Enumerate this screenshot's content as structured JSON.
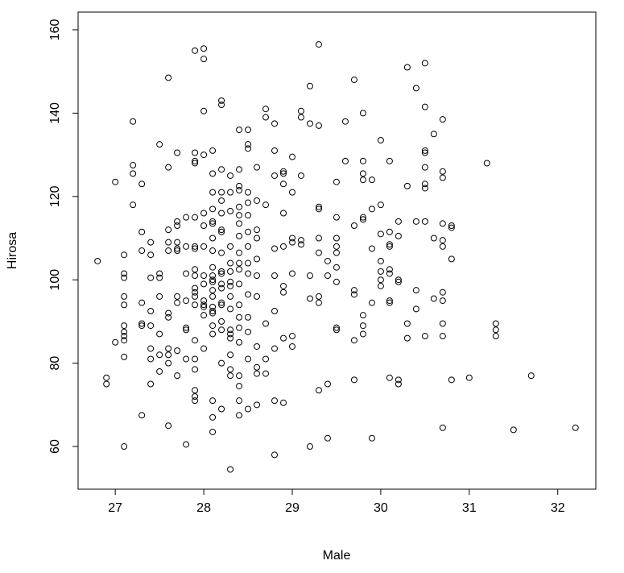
{
  "chart_data": {
    "type": "scatter",
    "x_label": "Male",
    "y_label": "Hirosa",
    "color": "#000000",
    "xlim": [
      26.58,
      32.43
    ],
    "ylim": [
      49.76,
      164.25
    ],
    "xticks": [
      27,
      28,
      29,
      30,
      31,
      32
    ],
    "yticks": [
      60,
      80,
      100,
      120,
      140,
      160
    ],
    "x": [
      26.8,
      26.9,
      26.9,
      27,
      27,
      27.1,
      27.1,
      27.1,
      27.1,
      27.1,
      27.1,
      27.1,
      27.1,
      27.1,
      27.1,
      27.1,
      27.2,
      27.2,
      27.2,
      27.2,
      27.3,
      27.3,
      27.3,
      27.3,
      27.3,
      27.3,
      27.3,
      27.4,
      27.4,
      27.4,
      27.4,
      27.4,
      27.4,
      27.4,
      27.4,
      27.5,
      27.5,
      27.5,
      27.5,
      27.5,
      27.5,
      27.5,
      27.6,
      27.6,
      27.6,
      27.6,
      27.6,
      27.6,
      27.6,
      27.6,
      27.6,
      27.6,
      27.6,
      27.7,
      27.7,
      27.7,
      27.7,
      27.7,
      27.7,
      27.7,
      27.7,
      27.7,
      27.7,
      27.8,
      27.8,
      27.8,
      27.8,
      27.8,
      27.8,
      27.8,
      27.8,
      27.9,
      27.9,
      27.9,
      27.9,
      27.9,
      27.9,
      27.9,
      27.9,
      27.9,
      27.9,
      27.9,
      27.9,
      27.9,
      27.9,
      27.9,
      27.9,
      27.9,
      27.9,
      27.9,
      28,
      28,
      28,
      28,
      28,
      28,
      28,
      28,
      28,
      28,
      28,
      28,
      28,
      28,
      28.1,
      28.1,
      28.1,
      28.1,
      28.1,
      28.1,
      28.1,
      28.1,
      28.1,
      28.1,
      28.1,
      28.1,
      28.1,
      28.1,
      28.1,
      28.1,
      28.1,
      28.1,
      28.1,
      28.1,
      28.1,
      28.1,
      28.2,
      28.2,
      28.2,
      28.2,
      28.2,
      28.2,
      28.2,
      28.2,
      28.2,
      28.2,
      28.2,
      28.2,
      28.2,
      28.2,
      28.2,
      28.2,
      28.2,
      28.2,
      28.2,
      28.3,
      28.3,
      28.3,
      28.3,
      28.3,
      28.3,
      28.3,
      28.3,
      28.3,
      28.3,
      28.3,
      28.3,
      28.3,
      28.3,
      28.3,
      28.3,
      28.3,
      28.4,
      28.4,
      28.4,
      28.4,
      28.4,
      28.4,
      28.4,
      28.4,
      28.4,
      28.4,
      28.4,
      28.4,
      28.4,
      28.4,
      28.4,
      28.4,
      28.4,
      28.4,
      28.4,
      28.4,
      28.5,
      28.5,
      28.5,
      28.5,
      28.5,
      28.5,
      28.5,
      28.5,
      28.5,
      28.5,
      28.5,
      28.5,
      28.5,
      28.5,
      28.5,
      28.6,
      28.6,
      28.6,
      28.6,
      28.6,
      28.6,
      28.6,
      28.6,
      28.6,
      28.6,
      28.6,
      28.7,
      28.7,
      28.7,
      28.7,
      28.7,
      28.7,
      28.8,
      28.8,
      28.8,
      28.8,
      28.8,
      28.8,
      28.8,
      28.8,
      28.8,
      28.9,
      28.9,
      28.9,
      28.9,
      28.9,
      28.9,
      28.9,
      28.9,
      28.9,
      29,
      29,
      29,
      29,
      29,
      29,
      29,
      29.1,
      29.1,
      29.1,
      29.1,
      29.1,
      29.2,
      29.2,
      29.2,
      29.2,
      29.2,
      29.3,
      29.3,
      29.3,
      29.3,
      29.3,
      29.3,
      29.3,
      29.3,
      29.3,
      29.4,
      29.4,
      29.4,
      29.4,
      29.5,
      29.5,
      29.5,
      29.5,
      29.5,
      29.5,
      29.5,
      29.5,
      29.5,
      29.6,
      29.6,
      29.7,
      29.7,
      29.7,
      29.7,
      29.7,
      29.7,
      29.8,
      29.8,
      29.8,
      29.8,
      29.8,
      29.8,
      29.8,
      29.8,
      29.8,
      29.9,
      29.9,
      29.9,
      29.9,
      29.9,
      30,
      30,
      30,
      30,
      30,
      30,
      30,
      30.1,
      30.1,
      30.1,
      30.1,
      30.1,
      30.1,
      30.1,
      30.1,
      30.1,
      30.2,
      30.2,
      30.2,
      30.2,
      30.2,
      30.2,
      30.3,
      30.3,
      30.3,
      30.3,
      30.4,
      30.4,
      30.4,
      30.4,
      30.5,
      30.5,
      30.5,
      30.5,
      30.5,
      30.5,
      30.5,
      30.5,
      30.5,
      30.6,
      30.6,
      30.6,
      30.7,
      30.7,
      30.7,
      30.7,
      30.7,
      30.7,
      30.7,
      30.7,
      30.7,
      30.7,
      30.7,
      30.8,
      30.8,
      30.8,
      30.8,
      31,
      31.2,
      31.3,
      31.3,
      31.3,
      31.5,
      31.7,
      32.2
    ],
    "values": [
      104.5,
      76.5,
      75,
      123.5,
      85,
      106,
      101.5,
      100.5,
      96,
      94,
      89,
      87.5,
      86.5,
      85.5,
      81.5,
      60,
      138,
      127.5,
      125.5,
      118,
      123,
      111.5,
      107,
      94.5,
      89.5,
      89,
      67.5,
      109,
      106,
      100.5,
      92.5,
      89,
      83.5,
      81,
      75,
      132.5,
      101.5,
      100.5,
      96,
      87,
      82,
      78,
      148.5,
      127,
      112,
      109,
      107,
      92,
      91,
      83.5,
      82,
      80,
      65,
      130.5,
      114,
      113,
      109,
      107.5,
      107,
      96,
      94.5,
      83,
      77,
      115,
      108,
      101.5,
      95,
      88.5,
      88,
      81,
      60.5,
      155,
      130.5,
      128.5,
      128,
      115,
      108,
      107.5,
      102.5,
      101,
      98,
      97,
      96,
      94,
      85.5,
      81,
      78.5,
      73.5,
      72,
      71,
      155.5,
      153,
      140.5,
      130,
      116,
      113,
      108,
      101,
      99,
      95,
      94,
      93.5,
      91.5,
      83.5,
      131,
      125.5,
      121,
      117,
      114,
      113.5,
      110,
      107,
      103,
      101,
      100,
      99.5,
      97.5,
      96,
      93.5,
      92.5,
      92,
      89,
      87,
      71,
      67,
      63.5,
      143,
      142,
      126.5,
      121,
      119,
      116,
      112,
      111.5,
      106.5,
      102,
      101.5,
      99,
      98,
      94.5,
      94,
      90,
      88,
      80,
      69,
      125,
      121,
      116.5,
      108,
      104,
      102,
      99.5,
      98.5,
      96,
      93,
      88,
      87,
      86,
      82,
      78.5,
      77,
      54.5,
      136,
      126.5,
      122.5,
      121.5,
      117.5,
      115.5,
      113.5,
      110.5,
      106.5,
      104,
      102.5,
      99,
      94,
      91,
      88.5,
      85,
      77,
      74.5,
      71,
      67.5,
      136,
      132.5,
      131.5,
      121,
      118.5,
      115.5,
      111.5,
      108,
      104,
      101.5,
      96.5,
      91,
      87.5,
      81,
      69,
      127,
      119,
      112,
      110,
      105,
      101,
      96,
      84,
      79,
      77.5,
      70,
      141,
      139,
      118,
      89.5,
      81,
      77.5,
      137.5,
      131,
      125,
      107.5,
      101,
      92.5,
      83.5,
      71,
      58,
      126,
      125.5,
      123,
      116,
      108,
      98.5,
      97,
      86,
      70.5,
      129.5,
      121,
      110,
      109,
      101.5,
      86.5,
      84,
      140.5,
      139,
      125,
      109.5,
      108.5,
      146.5,
      137.5,
      101,
      95.5,
      60,
      156.5,
      137,
      117.5,
      117,
      110,
      106.5,
      96,
      94.5,
      73.5,
      104.5,
      101,
      75,
      62,
      123.5,
      115,
      110,
      108,
      106.5,
      103,
      99.5,
      88.5,
      88,
      138,
      128.5,
      148,
      113,
      97.5,
      96.5,
      85.5,
      76,
      140,
      128.5,
      125.5,
      124,
      115,
      114.5,
      91.5,
      89,
      87,
      124,
      117,
      107.5,
      94.5,
      62,
      133.5,
      118,
      111,
      104.5,
      102,
      100,
      98.5,
      128.5,
      111.5,
      108.5,
      108,
      102.5,
      101.5,
      95,
      94.5,
      76.5,
      114,
      110.5,
      100,
      99.5,
      76,
      75,
      151,
      122.5,
      89.5,
      86,
      146,
      114,
      97.5,
      93,
      152,
      141.5,
      131,
      130.5,
      127,
      123,
      122,
      114,
      86.5,
      135,
      110,
      95.5,
      138.5,
      126,
      124.5,
      113.5,
      109.5,
      108,
      97,
      95,
      89.5,
      86.5,
      64.5,
      113,
      112.5,
      105,
      76,
      76.5,
      128,
      89.5,
      88,
      86.5,
      64,
      77,
      64.5
    ]
  }
}
